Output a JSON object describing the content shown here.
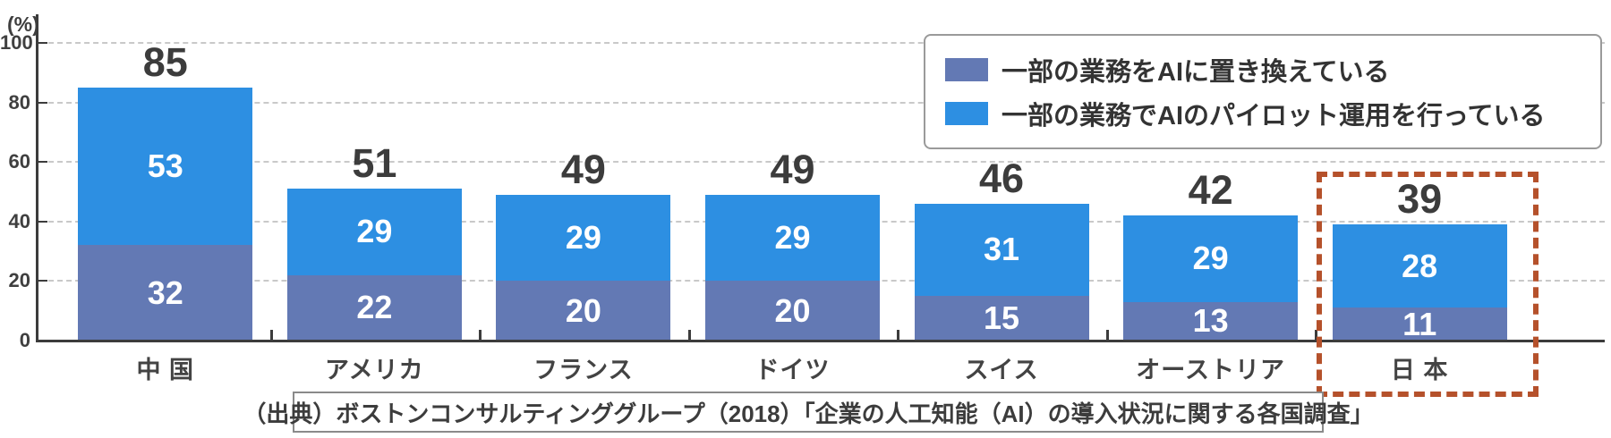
{
  "chart_data": {
    "type": "stacked-bar",
    "unit_label": "(%)",
    "categories": [
      "中 国",
      "アメリカ",
      "フランス",
      "ドイツ",
      "スイス",
      "オーストリア",
      "日 本"
    ],
    "series": [
      {
        "name": "一部の業務をAIに置き換えている",
        "color": "#6379b4",
        "values": [
          32,
          22,
          20,
          20,
          15,
          13,
          11
        ]
      },
      {
        "name": "一部の業務でAIのパイロット運用を行っている",
        "color": "#2d8fe2",
        "values": [
          53,
          29,
          29,
          29,
          31,
          29,
          28
        ]
      }
    ],
    "totals": [
      85,
      51,
      49,
      49,
      46,
      42,
      39
    ],
    "yticks": [
      0,
      20,
      40,
      60,
      80,
      100
    ],
    "ylim": [
      0,
      100
    ],
    "grid": "dashed-horizontal",
    "legend_position": "top-right",
    "highlight": {
      "category": "日 本",
      "style": "dashed-rust-rectangle",
      "color": "#b5512b"
    },
    "source": "（出典）ボストンコンサルティンググループ（2018）「企業の人工知能（AI）の導入状況に関する各国調査」"
  }
}
